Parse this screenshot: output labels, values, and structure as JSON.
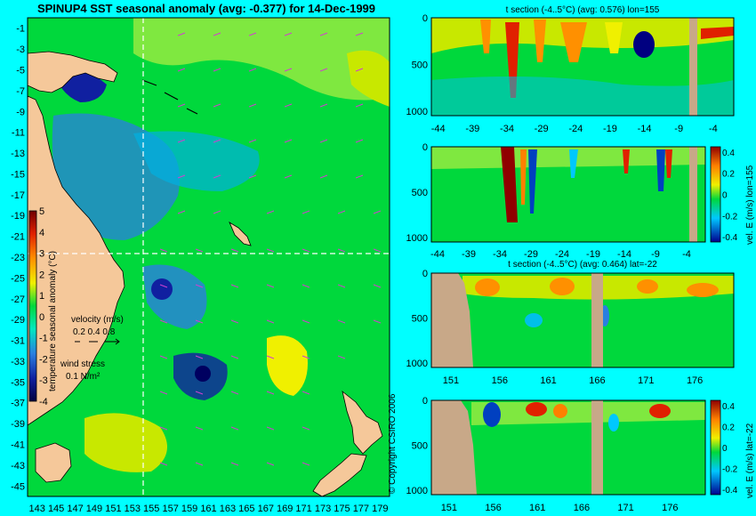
{
  "colors": {
    "background": "#00ffff",
    "land": "#f5c89a",
    "bathymetry_land": "#c8a888",
    "ocean_mid": "#00d83c",
    "ocean_warm": "#c8e800",
    "ocean_cool": "#2a7fe0",
    "ocean_cold": "#1020a0",
    "hot": "#e02000",
    "vectors": "#d040d0",
    "crosshair": "#ffffff"
  },
  "map": {
    "title": "SPINUP4 SST seasonal anomaly (avg: -0.377) for 14-Dec-1999",
    "lat_ticks": [
      "-1",
      "-3",
      "-5",
      "-7",
      "-9",
      "-11",
      "-13",
      "-15",
      "-17",
      "-19",
      "-21",
      "-23",
      "-25",
      "-27",
      "-29",
      "-31",
      "-33",
      "-35",
      "-37",
      "-39",
      "-41",
      "-43",
      "-45"
    ],
    "lon_ticks": [
      "143",
      "145",
      "147",
      "149",
      "151",
      "153",
      "155",
      "157",
      "159",
      "161",
      "163",
      "165",
      "167",
      "169",
      "171",
      "173",
      "175",
      "177",
      "179"
    ],
    "lon_range": [
      142,
      180
    ],
    "lat_range": [
      -46,
      0
    ],
    "crosshair_lon": 155,
    "crosshair_lat": -22,
    "colorbar_label": "temperature seasonal anomaly (°C)",
    "colorbar_ticks": [
      "5",
      "4",
      "3",
      "2",
      "1",
      "0",
      "-1",
      "-2",
      "-3",
      "-4"
    ],
    "velocity_legend_title": "velocity (m/s)",
    "velocity_legend_values": "0.2 0.4 0.8",
    "wind_legend_title": "wind stress",
    "wind_legend_value": "0.1 N/m²"
  },
  "copyright": "© Copyright CSIRO 2006",
  "panels": {
    "p1": {
      "subtitle": "t section (-4..5°C) (avg: 0.576) lon=155",
      "x_ticks": [
        "-44",
        "-39",
        "-34",
        "-29",
        "-24",
        "-19",
        "-14",
        "-9",
        "-4"
      ],
      "y_ticks": [
        "0",
        "500",
        "1000"
      ]
    },
    "p2": {
      "x_ticks": [
        "-44",
        "-39",
        "-34",
        "-29",
        "-24",
        "-19",
        "-14",
        "-9",
        "-4"
      ],
      "y_ticks": [
        "0",
        "500",
        "1000"
      ],
      "colorbar_ticks": [
        "0.4",
        "0.2",
        "0",
        "-0.2",
        "-0.4"
      ],
      "colorbar_label": "vel. E (m/s) lon=155"
    },
    "p3": {
      "subtitle": "t section (-4..5°C) (avg: 0.464) lat=-22",
      "x_ticks": [
        "151",
        "156",
        "161",
        "166",
        "171",
        "176"
      ],
      "y_ticks": [
        "0",
        "500",
        "1000"
      ]
    },
    "p4": {
      "x_ticks": [
        "151",
        "156",
        "161",
        "166",
        "171",
        "176"
      ],
      "y_ticks": [
        "0",
        "500",
        "1000"
      ],
      "colorbar_ticks": [
        "0.4",
        "0.2",
        "0",
        "-0.2",
        "-0.4"
      ],
      "colorbar_label": "vel. E (m/s) lat=-22"
    }
  },
  "chart_data": [
    {
      "type": "heatmap",
      "title": "SPINUP4 SST seasonal anomaly (avg: -0.377) for 14-Dec-1999",
      "x": [
        143,
        145,
        147,
        149,
        151,
        153,
        155,
        157,
        159,
        161,
        163,
        165,
        167,
        169,
        171,
        173,
        175,
        177,
        179
      ],
      "y": [
        -1,
        -3,
        -5,
        -7,
        -9,
        -11,
        -13,
        -15,
        -17,
        -19,
        -21,
        -23,
        -25,
        -27,
        -29,
        -31,
        -33,
        -35,
        -37,
        -39,
        -41,
        -43,
        -45
      ],
      "xlim": [
        142,
        180
      ],
      "ylim": [
        -46,
        0
      ],
      "colorbar": {
        "label": "temperature seasonal anomaly (°C)",
        "range": [
          -4,
          5
        ]
      },
      "grid": false
    },
    {
      "type": "heatmap",
      "title": "t section (-4..5°C) (avg: 0.576) lon=155",
      "x": [
        -44,
        -39,
        -34,
        -29,
        -24,
        -19,
        -14,
        -9,
        -4
      ],
      "y": [
        0,
        500,
        1000
      ],
      "xlim": [
        -45,
        -1
      ],
      "ylim": [
        1050,
        0
      ]
    },
    {
      "type": "heatmap",
      "x": [
        -44,
        -39,
        -34,
        -29,
        -24,
        -19,
        -14,
        -9,
        -4
      ],
      "y": [
        0,
        500,
        1000
      ],
      "colorbar": {
        "label": "vel. E (m/s) lon=155",
        "range": [
          -0.4,
          0.4
        ]
      }
    },
    {
      "type": "heatmap",
      "title": "t section (-4..5°C) (avg: 0.464) lat=-22",
      "x": [
        151,
        156,
        161,
        166,
        171,
        176
      ],
      "y": [
        0,
        500,
        1000
      ],
      "xlim": [
        149,
        180
      ],
      "ylim": [
        1050,
        0
      ]
    },
    {
      "type": "heatmap",
      "x": [
        151,
        156,
        161,
        166,
        171,
        176
      ],
      "y": [
        0,
        500,
        1000
      ],
      "colorbar": {
        "label": "vel. E (m/s) lat=-22",
        "range": [
          -0.4,
          0.4
        ]
      }
    }
  ]
}
